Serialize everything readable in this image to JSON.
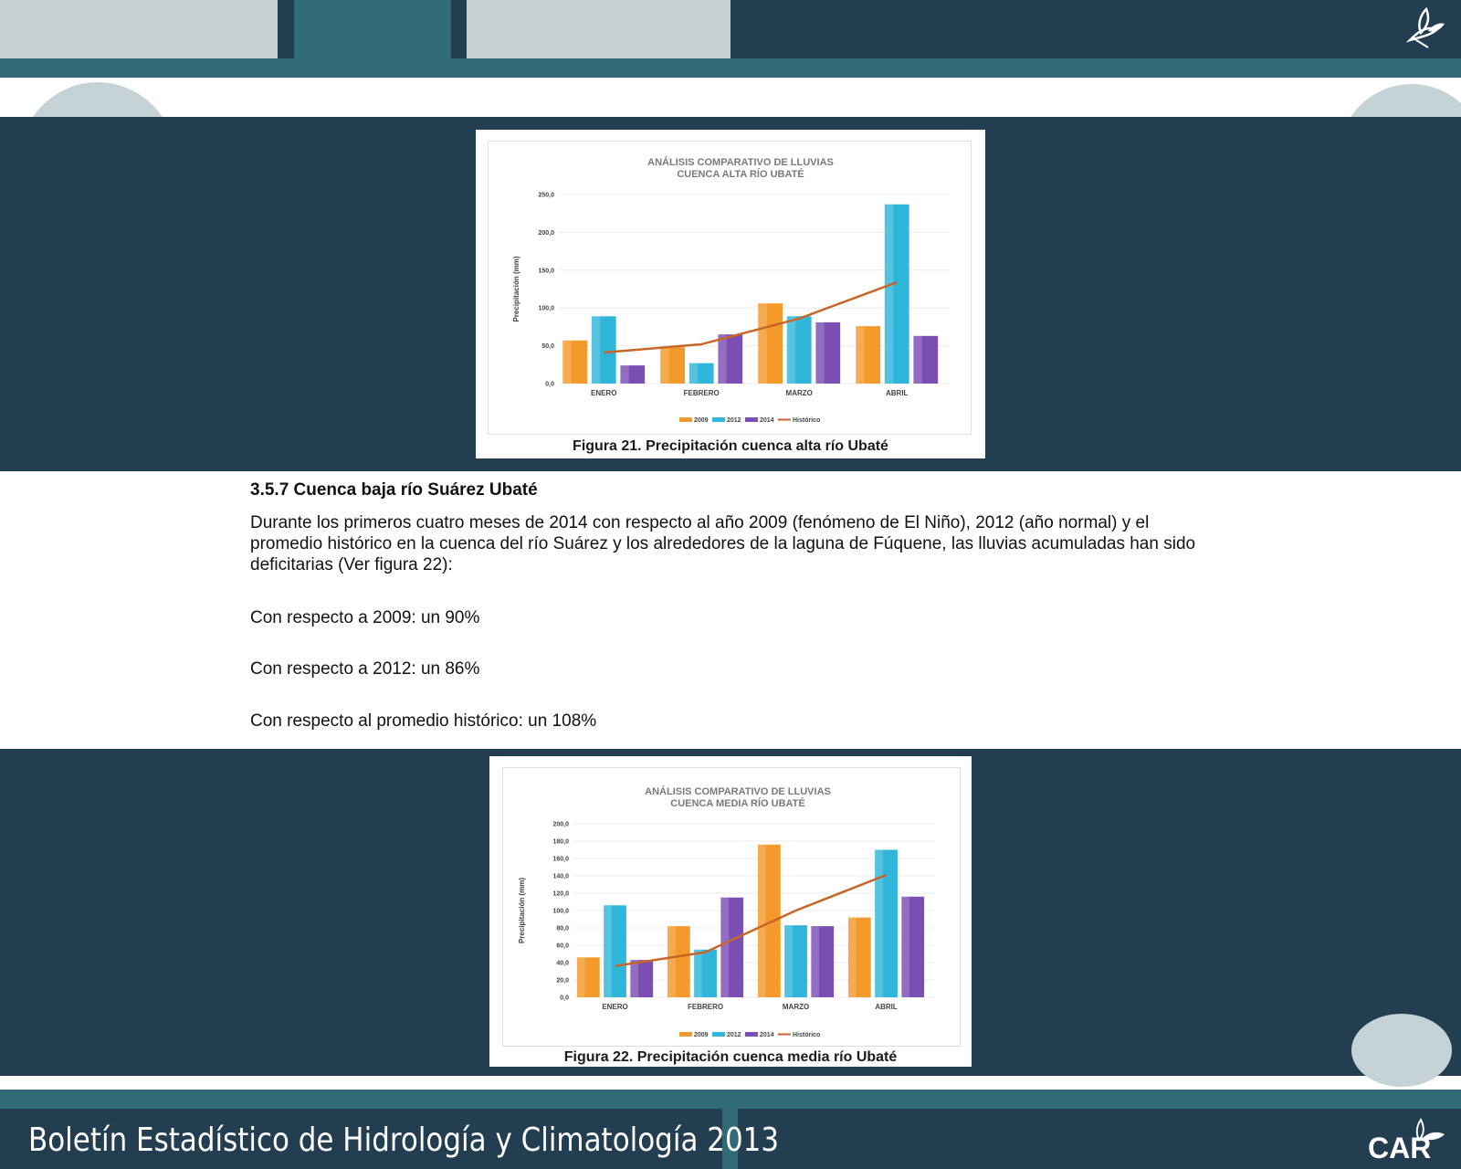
{
  "footer": {
    "title": "Boletín Estadístico de Hidrología y Climatología 2013",
    "logo_text": "CAR"
  },
  "section": {
    "heading": "3.5.7 Cuenca baja río Suárez Ubaté",
    "paragraph": "Durante los primeros cuatro meses de 2014 con respecto al año 2009 (fenómeno de El Niño), 2012 (año normal) y el promedio histórico en la cuenca del río Suárez y los alrededores de la laguna de Fúquene, las lluvias acumuladas han sido deficitarias (Ver figura 22):",
    "lines": [
      "Con respecto a 2009: un 90%",
      "Con respecto a 2012: un 86%",
      "Con respecto al promedio histórico: un 108%"
    ]
  },
  "figures": [
    {
      "caption": "Figura 21. Precipitación cuenca alta río Ubaté"
    },
    {
      "caption": "Figura 22. Precipitación cuenca media río Ubaté"
    }
  ],
  "colors": {
    "band": "#233d51",
    "stripe": "#306a77",
    "s2009": "#f39a2a",
    "s2012": "#2fb6da",
    "s2014": "#7b4eb3",
    "historico": "#c8662a"
  },
  "chart_data": [
    {
      "type": "bar",
      "title": [
        "ANÁLISIS COMPARATIVO DE LLUVIAS",
        "CUENCA ALTA RÍO UBATÉ"
      ],
      "ylabel": "Precipitación  (mm)",
      "xlabel": "",
      "categories": [
        "ENERO",
        "FEBRERO",
        "MARZO",
        "ABRIL"
      ],
      "ylim": [
        0,
        250
      ],
      "yticks": [
        "0,0",
        "50,0",
        "100,0",
        "150,0",
        "200,0",
        "250,0"
      ],
      "series": [
        {
          "name": "2009",
          "values": [
            57,
            48,
            106,
            76
          ]
        },
        {
          "name": "2012",
          "values": [
            89,
            27,
            89,
            237
          ]
        },
        {
          "name": "2014",
          "values": [
            24,
            65,
            81,
            63
          ]
        }
      ],
      "line": {
        "name": "Histórico",
        "values": [
          41,
          52,
          86,
          134
        ]
      },
      "legend": "bottom",
      "grid": true
    },
    {
      "type": "bar",
      "title": [
        "ANÁLISIS COMPARATIVO DE LLUVIAS",
        "CUENCA MEDIA RÍO UBATÉ"
      ],
      "ylabel": "Precipitación  (mm)",
      "xlabel": "",
      "categories": [
        "ENERO",
        "FEBRERO",
        "MARZO",
        "ABRIL"
      ],
      "ylim": [
        0,
        200
      ],
      "yticks": [
        "0,0",
        "20,0",
        "40,0",
        "60,0",
        "80,0",
        "100,0",
        "120,0",
        "140,0",
        "160,0",
        "180,0",
        "200,0"
      ],
      "series": [
        {
          "name": "2009",
          "values": [
            46,
            82,
            176,
            92
          ]
        },
        {
          "name": "2012",
          "values": [
            106,
            55,
            83,
            170
          ]
        },
        {
          "name": "2014",
          "values": [
            43,
            115,
            82,
            116
          ]
        }
      ],
      "line": {
        "name": "Histórico",
        "values": [
          36,
          52,
          100,
          141
        ]
      },
      "legend": "bottom",
      "grid": true
    }
  ]
}
